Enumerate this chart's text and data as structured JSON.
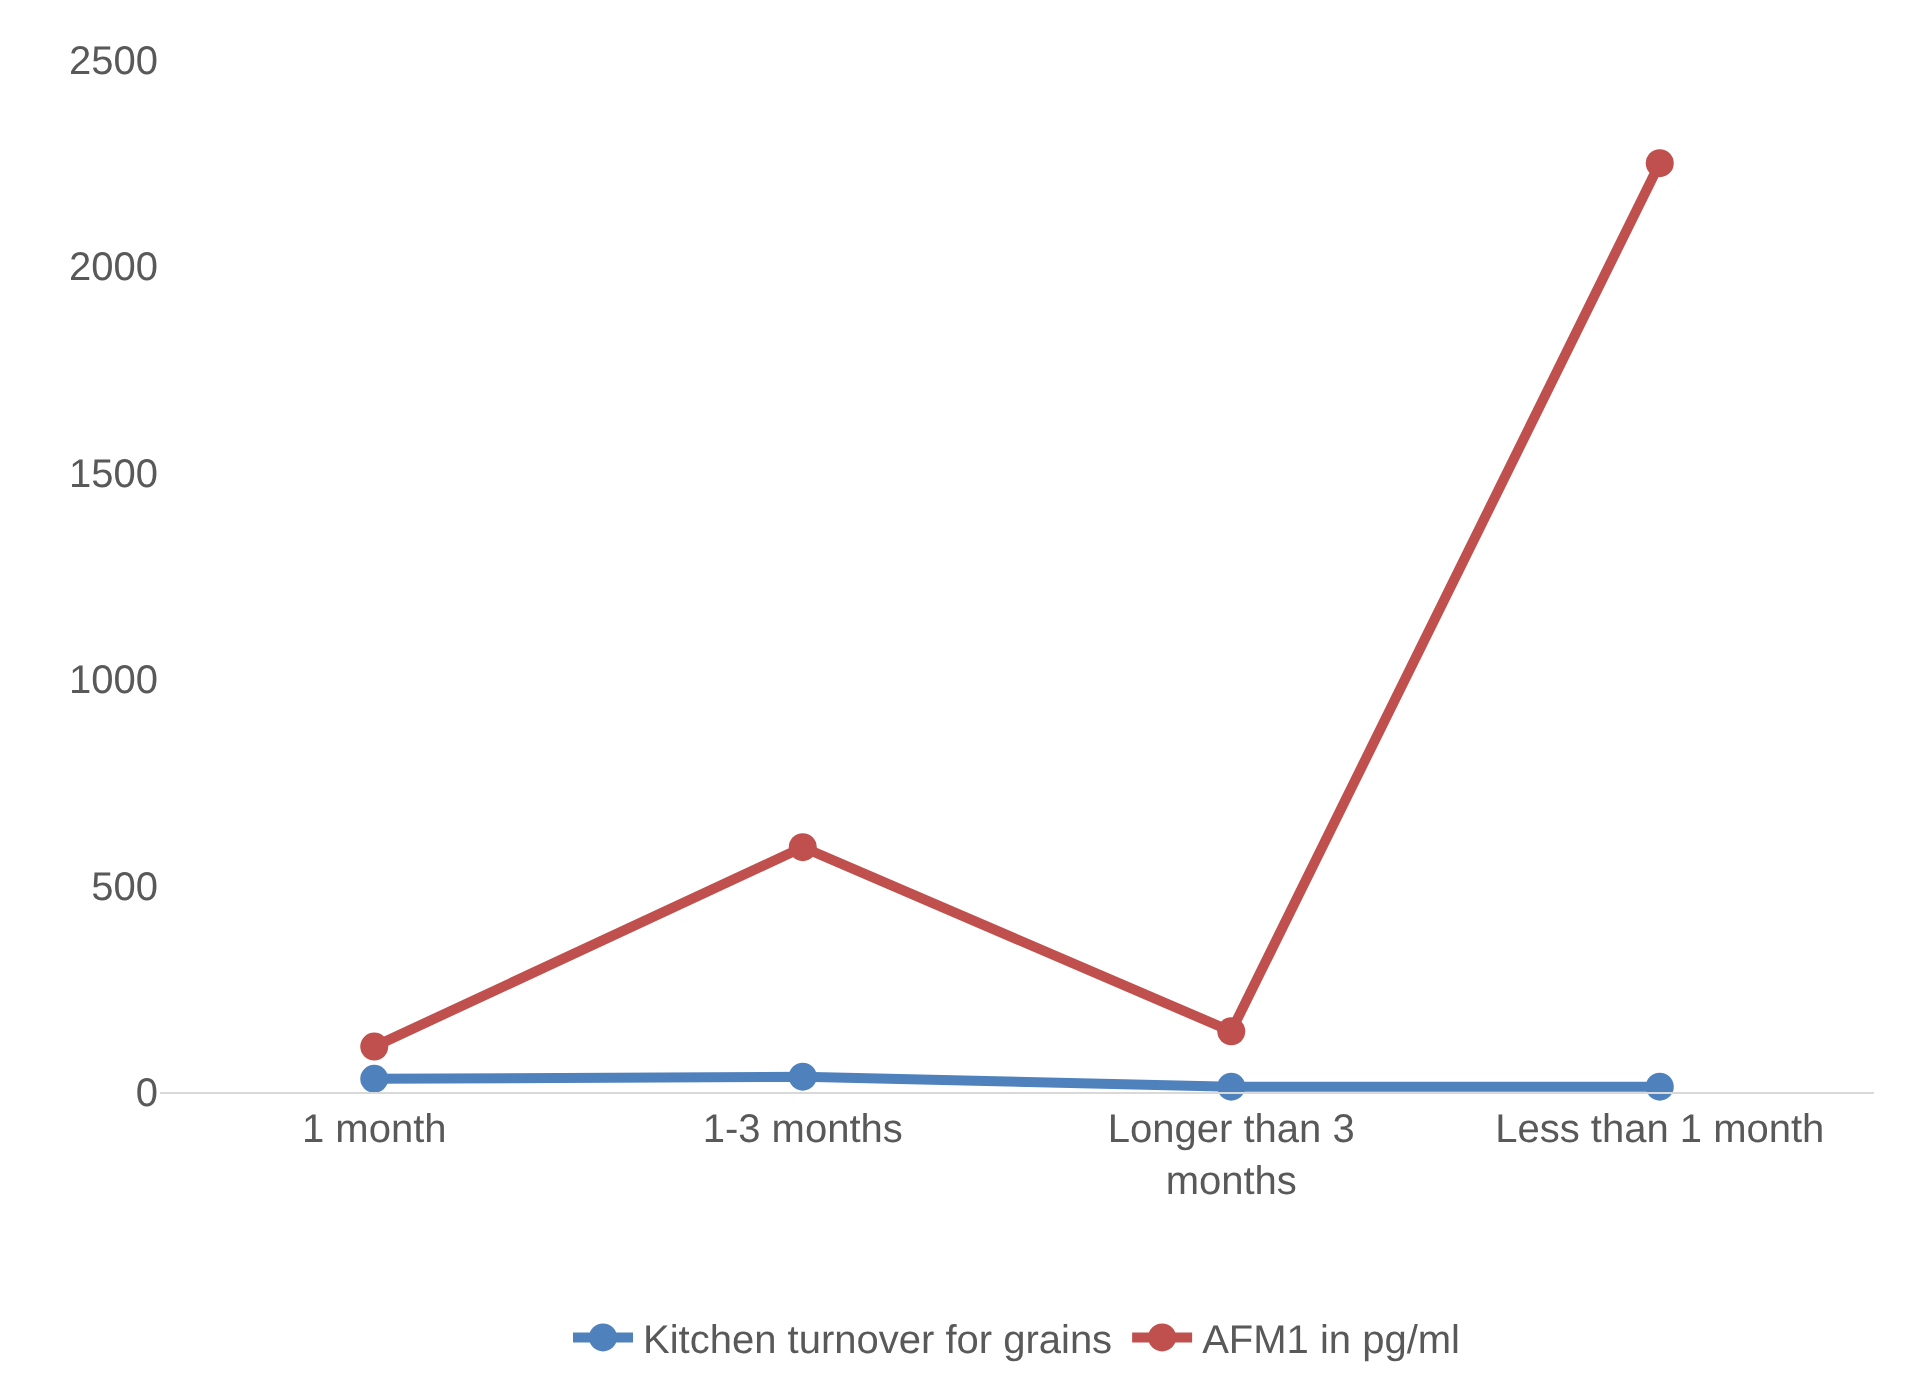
{
  "chart_data": {
    "type": "line",
    "categories": [
      "1 month",
      "1-3 months",
      "Longer than 3 months",
      "Less than 1 month"
    ],
    "series": [
      {
        "name": "Kitchen turnover for grains",
        "color": "#4f81bd",
        "values": [
          32,
          37,
          13,
          13
        ]
      },
      {
        "name": "AFM1 in pg/ml",
        "color": "#c0504d",
        "values": [
          110,
          593,
          147,
          2250
        ]
      }
    ],
    "ylim": [
      0,
      2500
    ],
    "yticks": [
      0,
      500,
      1000,
      1500,
      2000,
      2500
    ],
    "grid": false,
    "legend": "bottom",
    "marker": "circle",
    "line_style": "solid"
  }
}
